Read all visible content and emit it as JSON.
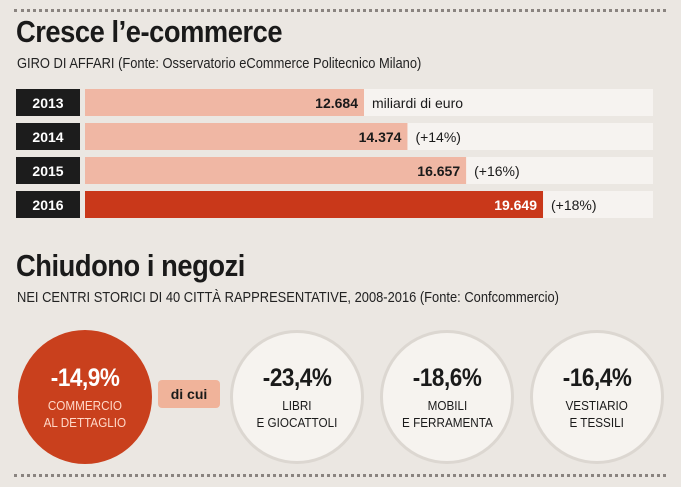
{
  "section1": {
    "title": "Cresce l’e-commerce",
    "subtitle": "GIRO DI AFFARI  (Fonte: Osservatorio eCommerce Politecnico Milano)"
  },
  "chart_data": {
    "type": "bar",
    "orientation": "horizontal",
    "title": "Cresce l’e-commerce",
    "subtitle": "GIRO DI AFFARI  (Fonte: Osservatorio eCommerce Politecnico Milano)",
    "categories": [
      "2013",
      "2014",
      "2015",
      "2016"
    ],
    "values": [
      12.684,
      14.374,
      16.657,
      19.649
    ],
    "value_labels": [
      "12.684",
      "14.374",
      "16.657",
      "19.649"
    ],
    "annotations": [
      "miliardi di euro",
      "(+14%)",
      "(+16%)",
      "(+18%)"
    ],
    "xlim": [
      0,
      20
    ],
    "grid": false,
    "colors": {
      "bar": "#f0b7a4",
      "bar_highlight": "#c9381a",
      "track": "#f6f3f0",
      "year_box": "#1c1c1c"
    }
  },
  "section2": {
    "title": "Chiudono i negozi",
    "subtitle": "NEI CENTRI STORICI DI 40 CITTÀ RAPPRESENTATIVE, 2008-2016  (Fonte: Confcommercio)",
    "main": {
      "pct": "-14,9%",
      "label_line1": "COMMERCIO",
      "label_line2": "AL DETTAGLIO"
    },
    "connector": "di cui",
    "items": [
      {
        "pct": "-23,4%",
        "label_line1": "LIBRI",
        "label_line2": "E GIOCATTOLI"
      },
      {
        "pct": "-18,6%",
        "label_line1": "MOBILI",
        "label_line2": "E FERRAMENTA"
      },
      {
        "pct": "-16,4%",
        "label_line1": "VESTIARIO",
        "label_line2": "E TESSILI"
      }
    ],
    "colors": {
      "main_circle": "#c9401d",
      "connector_bg": "#f0b39a",
      "circle_bg": "#f6f3ef"
    }
  }
}
